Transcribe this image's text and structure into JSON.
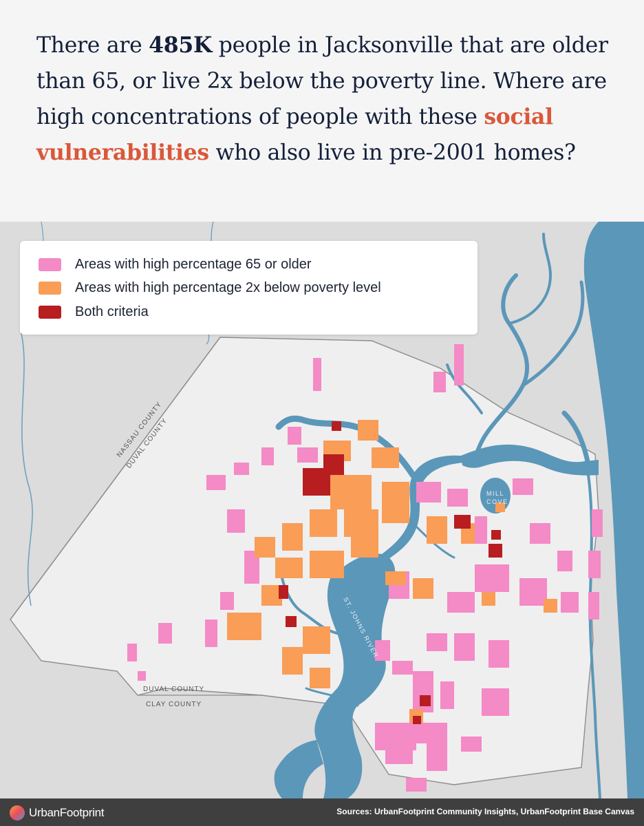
{
  "headline": {
    "part1": "There are ",
    "figure": "485K",
    "part2": " people in Jacksonville that are older than 65, or live 2x below the poverty line. Where are high concentrations of people with these ",
    "highlight": "social vulnerabilities",
    "part3": " who also live in pre-2001 homes?"
  },
  "legend": {
    "items": [
      {
        "label": "Areas with high percentage 65 or older",
        "color": "#f48ac6"
      },
      {
        "label": "Areas with high percentage 2x below poverty level",
        "color": "#f99d57"
      },
      {
        "label": "Both criteria",
        "color": "#b81d20"
      }
    ]
  },
  "map": {
    "labels": {
      "nassau": "NASSAU COUNTY",
      "duval_north": "DUVAL COUNTY",
      "duval_south": "DUVAL COUNTY",
      "clay": "CLAY COUNTY",
      "river": "ST. JOHNS RIVER",
      "mill": "MILL",
      "cove": "COVE"
    },
    "colors": {
      "water": "#5b97b9",
      "land": "#dcdcdc",
      "county": "#ececec",
      "boundary": "#8c8c8c"
    }
  },
  "footer": {
    "logo_icon": "urbanfootprint-logo-icon",
    "logo_text": "UrbanFootprint",
    "sources": "Sources: UrbanFootprint Community Insights, UrbanFootprint Base Canvas"
  }
}
